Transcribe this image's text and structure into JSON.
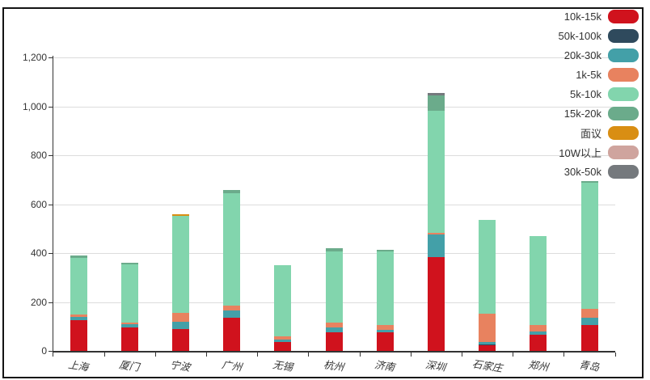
{
  "window": {
    "background": "#ffffff",
    "frame_border_color": "#141414"
  },
  "chart_data": {
    "type": "bar",
    "stacked": true,
    "title": "",
    "xlabel": "",
    "ylabel": "",
    "grid": true,
    "legend_position": "top-right",
    "ylim": [
      0,
      1200
    ],
    "ytick_values": [
      0,
      200,
      400,
      600,
      800,
      1000,
      1200
    ],
    "ytick_labels": [
      "0",
      "200",
      "400",
      "600",
      "800",
      "1,000",
      "1,200"
    ],
    "categories": [
      "上海",
      "厦门",
      "宁波",
      "广州",
      "无锡",
      "杭州",
      "济南",
      "深圳",
      "石家庄",
      "郑州",
      "青岛"
    ],
    "series": [
      {
        "name": "10k-15k",
        "color": "#d0121d",
        "values": [
          125,
          95,
          88,
          135,
          35,
          77,
          75,
          385,
          22,
          66,
          105
        ]
      },
      {
        "name": "50k-100k",
        "color": "#2f4a5d",
        "values": [
          0,
          0,
          0,
          0,
          0,
          0,
          0,
          0,
          5,
          0,
          0
        ]
      },
      {
        "name": "20k-30k",
        "color": "#43a0a8",
        "values": [
          15,
          13,
          32,
          30,
          10,
          18,
          10,
          90,
          8,
          13,
          31
        ]
      },
      {
        "name": "1k-5k",
        "color": "#e8825f",
        "values": [
          8,
          7,
          35,
          20,
          16,
          20,
          20,
          6,
          118,
          28,
          36
        ]
      },
      {
        "name": "5k-10k",
        "color": "#82d5ad",
        "values": [
          233,
          240,
          398,
          460,
          291,
          292,
          301,
          500,
          384,
          363,
          516
        ]
      },
      {
        "name": "15k-20k",
        "color": "#6bab8b",
        "values": [
          10,
          4,
          0,
          13,
          0,
          13,
          7,
          62,
          0,
          0,
          7
        ]
      },
      {
        "name": "面议",
        "color": "#d98e13",
        "values": [
          0,
          0,
          7,
          0,
          0,
          0,
          0,
          0,
          0,
          0,
          0
        ]
      },
      {
        "name": "10W以上",
        "color": "#cfa49e",
        "values": [
          0,
          0,
          0,
          0,
          0,
          0,
          0,
          0,
          0,
          0,
          0
        ]
      },
      {
        "name": "30k-50k",
        "color": "#75797d",
        "values": [
          0,
          0,
          0,
          0,
          0,
          0,
          0,
          12,
          0,
          0,
          0
        ]
      }
    ],
    "totals": [
      391,
      359,
      560,
      658,
      352,
      420,
      413,
      1055,
      537,
      470,
      695
    ],
    "colors": {
      "grid": "#dcdcdc",
      "axis": "#333333",
      "label": "#333333"
    }
  }
}
